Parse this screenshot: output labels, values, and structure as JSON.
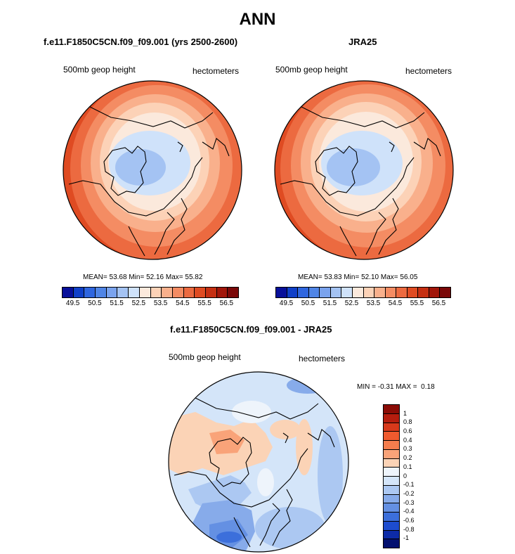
{
  "title": "ANN",
  "panels": [
    {
      "title": "f.e11.F1850C5CN.f09_f09.001 (yrs 2500-2600)",
      "variable": "500mb geop height",
      "units": "hectometers",
      "stats": {
        "mean": "53.68",
        "min": "52.16",
        "max": "55.82"
      }
    },
    {
      "title": "JRA25",
      "variable": "500mb geop height",
      "units": "hectometers",
      "stats": {
        "mean": "53.83",
        "min": "52.10",
        "max": "56.05"
      }
    }
  ],
  "diff_panel": {
    "title": "f.e11.F1850C5CN.f09_f09.001 - JRA25",
    "variable": "500mb geop height",
    "units": "hectometers",
    "stats": {
      "min": "-0.31",
      "max": "0.18"
    }
  },
  "labels": {
    "mean": "MEAN=",
    "min": "Min=",
    "max": "Max=",
    "diff_min": "MIN =",
    "diff_max": "MAX ="
  },
  "top_colorbar": {
    "colors": [
      "#08109a",
      "#1040c8",
      "#2f66df",
      "#5085e6",
      "#7aa3ee",
      "#a4c3f3",
      "#cfe2fa",
      "#fbe9dc",
      "#fcd2b7",
      "#f9b08c",
      "#f48c63",
      "#ec6a40",
      "#df4b22",
      "#c52f12",
      "#a1160a",
      "#7a0808"
    ],
    "ticks": [
      "49.5",
      "50.5",
      "51.5",
      "52.5",
      "53.5",
      "54.5",
      "55.5",
      "56.5"
    ]
  },
  "diff_colorbar": {
    "colors_top_to_bottom": [
      "#8b0c06",
      "#b51d0e",
      "#d8391b",
      "#ef5a2e",
      "#f57d4d",
      "#f9a379",
      "#fbd3b6",
      "#eef4fb",
      "#d4e5f9",
      "#acc8f2",
      "#87abea",
      "#6490e3",
      "#3c6fdb",
      "#1d4ccf",
      "#0d2ba8",
      "#03106f"
    ],
    "ticks": [
      "1",
      "0.8",
      "0.6",
      "0.4",
      "0.3",
      "0.2",
      "0.1",
      "0",
      "-0.1",
      "-0.2",
      "-0.3",
      "-0.4",
      "-0.6",
      "-0.8",
      "-1"
    ]
  }
}
